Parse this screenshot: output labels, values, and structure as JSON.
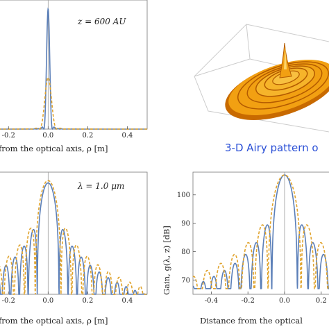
{
  "colors": {
    "solid": "#5b7fb8",
    "dashed": "#e0a32c",
    "axis": "#555555",
    "airy_fill": "#f0a010",
    "airy_dark": "#b35a00",
    "caption": "#2a4fd6"
  },
  "icons": {
    "airy_3d": "3d-airy-surface"
  },
  "chart_data": [
    {
      "id": "top-left",
      "type": "line",
      "annotation": "z = 600 AU",
      "xlabel": "from the optical axis,  ρ [m]",
      "xlim": [
        -0.25,
        0.5
      ],
      "ylim": [
        0,
        1
      ],
      "x_ticks": [
        -0.2,
        0.0,
        0.2,
        0.4
      ],
      "x_tick_labels": [
        "-0.2",
        "0.0",
        "0.2",
        "0.4"
      ],
      "series": [
        {
          "style": "solid",
          "description_x_range": [
            -0.25,
            0.5
          ],
          "peak_x": 0.0,
          "peak_y": 0.98,
          "first_zero": 0.022
        },
        {
          "style": "dashed",
          "peak_x": 0.0,
          "peak_y": 0.42,
          "first_zero": 0.045
        }
      ]
    },
    {
      "id": "bottom-left",
      "type": "line",
      "annotation": "λ = 1.0 μm",
      "xlabel": "from the optical axis,  ρ [m]",
      "xlim": [
        -0.25,
        0.5
      ],
      "ylim": [
        0,
        1
      ],
      "x_ticks": [
        -0.2,
        0.0,
        0.2,
        0.4
      ],
      "x_tick_labels": [
        "-0.2",
        "0.0",
        "0.2",
        "0.4"
      ],
      "series": [
        {
          "style": "solid",
          "peak_x": 0.0,
          "peak_y": 0.93,
          "first_zero": 0.055
        },
        {
          "style": "dashed",
          "peak_x": 0.0,
          "peak_y": 0.95,
          "first_zero": 0.065
        }
      ]
    },
    {
      "id": "bottom-right",
      "type": "line",
      "xlabel": "Distance from the optical",
      "ylabel": "Gain,  g(λ, z)  [dB]",
      "xlim": [
        -0.5,
        0.25
      ],
      "ylim": [
        65,
        108
      ],
      "x_ticks": [
        -0.4,
        -0.2,
        0.0,
        0.2
      ],
      "x_tick_labels": [
        "-0.4",
        "-0.2",
        "0.0",
        "0.2"
      ],
      "y_ticks": [
        70,
        80,
        90,
        100
      ],
      "y_tick_labels": [
        "70",
        "80",
        "90",
        "100"
      ],
      "series": [
        {
          "style": "solid",
          "peak_x": 0.0,
          "peak_y": 107,
          "first_zero": 0.07
        },
        {
          "style": "dashed",
          "peak_x": 0.0,
          "peak_y": 107,
          "first_zero": 0.09
        }
      ]
    }
  ],
  "airy_caption": "3-D Airy pattern o"
}
